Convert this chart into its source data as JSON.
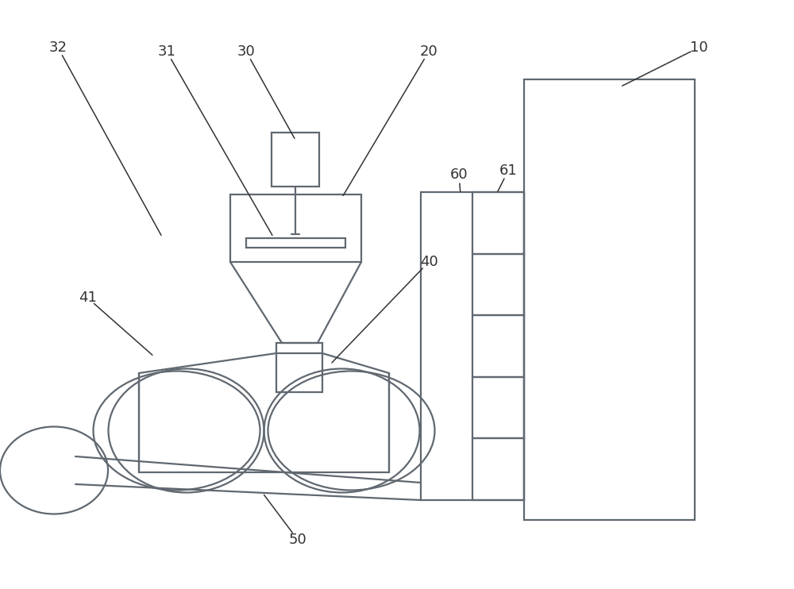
{
  "bg_color": "#ffffff",
  "line_color": "#606870",
  "line_width": 1.6,
  "label_fontsize": 13,
  "label_color": "#333333"
}
